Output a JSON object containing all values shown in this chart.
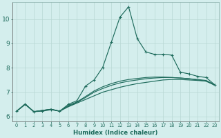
{
  "xlabel": "Humidex (Indice chaleur)",
  "background_color": "#d4eeed",
  "grid_color": "#b8d8d4",
  "line_color": "#1e6b5c",
  "xlim": [
    -0.5,
    23.5
  ],
  "ylim": [
    5.8,
    10.7
  ],
  "xticks": [
    0,
    1,
    2,
    3,
    4,
    5,
    6,
    7,
    8,
    9,
    10,
    11,
    12,
    13,
    14,
    15,
    16,
    17,
    18,
    19,
    20,
    21,
    22,
    23
  ],
  "yticks": [
    6,
    7,
    8,
    9,
    10
  ],
  "series": [
    {
      "x": [
        0,
        1,
        2,
        3,
        4,
        5,
        6,
        7,
        8,
        9,
        10,
        11,
        12,
        13,
        14,
        15,
        16,
        17,
        18,
        19,
        20,
        21,
        22,
        23
      ],
      "y": [
        6.22,
        6.5,
        6.2,
        6.25,
        6.3,
        6.22,
        6.4,
        6.55,
        6.7,
        6.85,
        7.0,
        7.1,
        7.2,
        7.28,
        7.35,
        7.4,
        7.45,
        7.5,
        7.52,
        7.52,
        7.5,
        7.48,
        7.45,
        7.3
      ],
      "markers": false
    },
    {
      "x": [
        0,
        1,
        2,
        3,
        4,
        5,
        6,
        7,
        8,
        9,
        10,
        11,
        12,
        13,
        14,
        15,
        16,
        17,
        18,
        19,
        20,
        21,
        22,
        23
      ],
      "y": [
        6.22,
        6.5,
        6.2,
        6.25,
        6.3,
        6.22,
        6.42,
        6.58,
        6.78,
        7.0,
        7.15,
        7.28,
        7.38,
        7.45,
        7.5,
        7.55,
        7.58,
        7.6,
        7.6,
        7.58,
        7.55,
        7.52,
        7.48,
        7.3
      ],
      "markers": false
    },
    {
      "x": [
        0,
        1,
        2,
        3,
        4,
        5,
        6,
        7,
        8,
        9,
        10,
        11,
        12,
        13,
        14,
        15,
        16,
        17,
        18,
        19,
        20,
        21,
        22,
        23
      ],
      "y": [
        6.22,
        6.5,
        6.2,
        6.25,
        6.3,
        6.22,
        6.45,
        6.6,
        6.82,
        7.05,
        7.22,
        7.35,
        7.45,
        7.52,
        7.56,
        7.6,
        7.62,
        7.62,
        7.6,
        7.58,
        7.55,
        7.5,
        7.45,
        7.28
      ],
      "markers": false
    },
    {
      "x": [
        0,
        1,
        2,
        3,
        4,
        5,
        6,
        7,
        8,
        9,
        10,
        11,
        12,
        13,
        14,
        15,
        16,
        17,
        18,
        19,
        20,
        21,
        22,
        23
      ],
      "y": [
        6.22,
        6.52,
        6.2,
        6.22,
        6.28,
        6.22,
        6.5,
        6.65,
        7.25,
        7.5,
        8.02,
        9.05,
        10.08,
        10.5,
        9.2,
        8.65,
        8.55,
        8.55,
        8.52,
        7.82,
        7.75,
        7.65,
        7.6,
        7.3
      ],
      "markers": true
    }
  ]
}
